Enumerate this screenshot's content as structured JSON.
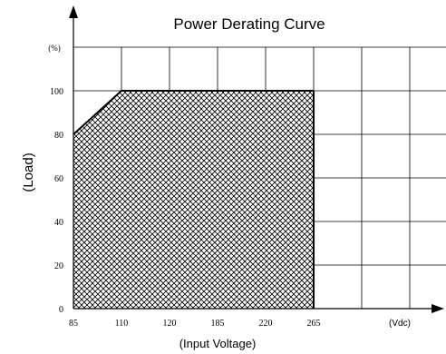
{
  "chart_data": {
    "type": "area",
    "title": "Power Derating Curve",
    "xlabel": "(Input Voltage)",
    "ylabel": "(Load)",
    "x_unit": "(Vdc)",
    "y_unit": "(%)",
    "x_categories": [
      "85",
      "110",
      "120",
      "185",
      "220",
      "265"
    ],
    "y_ticks": [
      0,
      20,
      40,
      60,
      80,
      100
    ],
    "ylim": [
      0,
      120
    ],
    "grid": true,
    "series": [
      {
        "points": [
          {
            "x": "85",
            "y": 80
          },
          {
            "x": "110",
            "y": 100
          },
          {
            "x": "265",
            "y": 100
          }
        ]
      }
    ],
    "fill_pattern": "crosshatch"
  },
  "colors": {
    "line": "#000000",
    "grid": "#000000",
    "hatch": "#000000",
    "fill": "#ffffff"
  }
}
